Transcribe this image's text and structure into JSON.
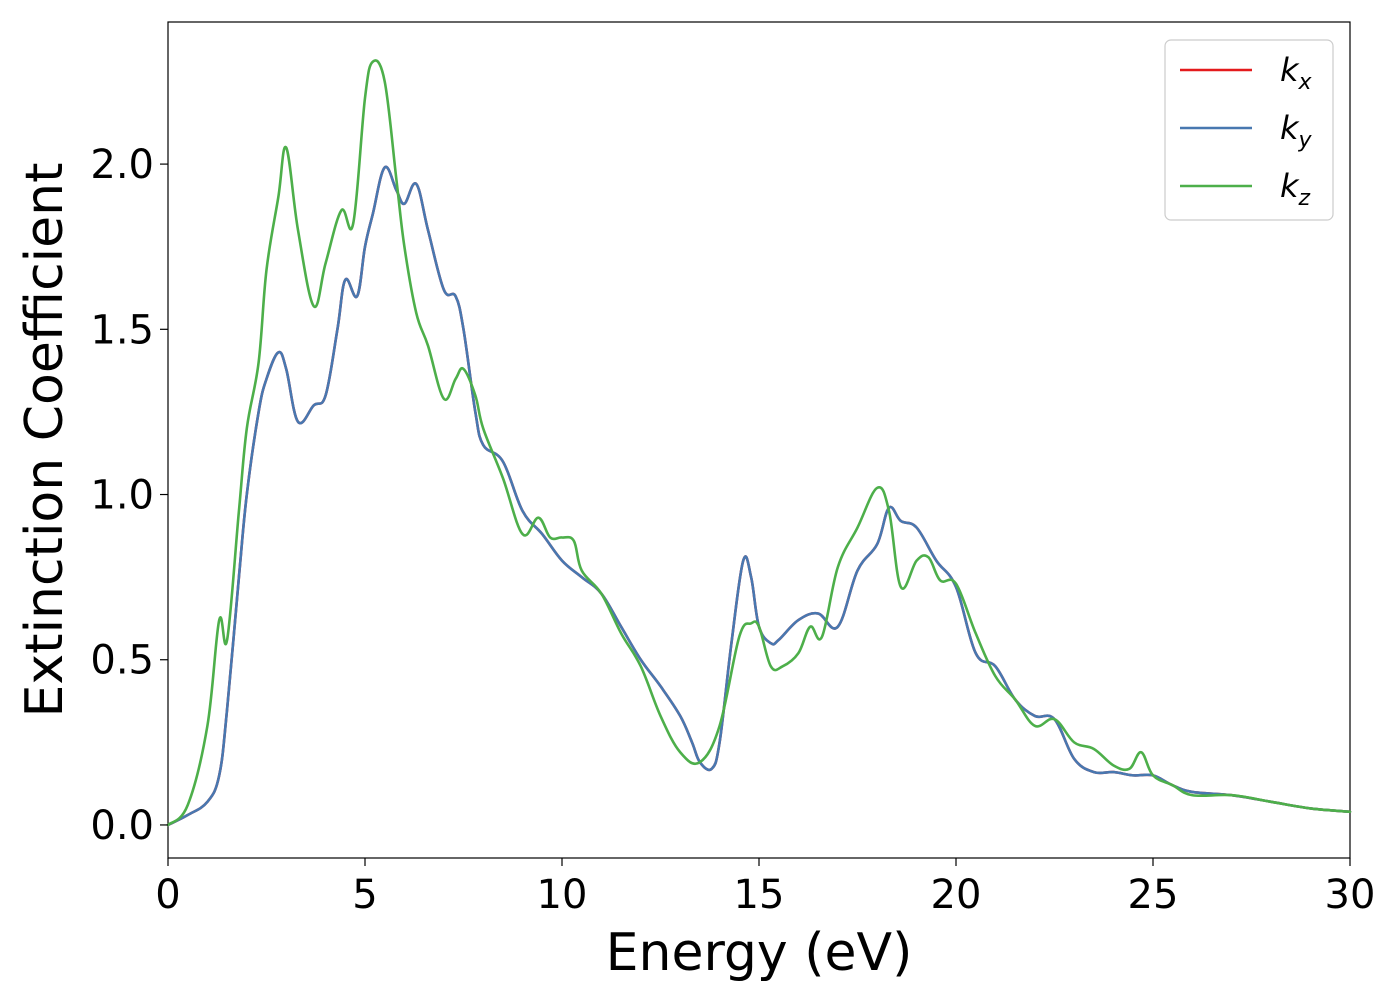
{
  "chart_data": {
    "type": "line",
    "xlabel": "Energy (eV)",
    "ylabel": "Extinction Coefficient",
    "xlim": [
      0,
      30
    ],
    "ylim": [
      -0.1,
      2.43
    ],
    "xticks": [
      0,
      5,
      10,
      15,
      20,
      25,
      30
    ],
    "xtick_labels": [
      "0",
      "5",
      "10",
      "15",
      "20",
      "25",
      "30"
    ],
    "yticks": [
      0.0,
      0.5,
      1.0,
      1.5,
      2.0
    ],
    "ytick_labels": [
      "0.0",
      "0.5",
      "1.0",
      "1.5",
      "2.0"
    ],
    "grid": false,
    "legend_position": "top-right",
    "series": [
      {
        "name": "k",
        "subscript": "x",
        "color": "#e41a1c",
        "x": [
          0,
          0.5,
          1.0,
          1.3,
          1.5,
          1.8,
          2.0,
          2.3,
          2.5,
          2.8,
          3.0,
          3.3,
          3.7,
          4.0,
          4.3,
          4.5,
          4.8,
          5.0,
          5.2,
          5.5,
          5.8,
          6.0,
          6.3,
          6.6,
          7.0,
          7.3,
          7.5,
          7.8,
          8.0,
          8.5,
          9.0,
          9.5,
          10.0,
          10.5,
          11.0,
          11.5,
          12.0,
          12.5,
          13.0,
          13.3,
          13.5,
          13.8,
          14.0,
          14.3,
          14.6,
          14.8,
          15.0,
          15.3,
          15.5,
          16.0,
          16.5,
          17.0,
          17.5,
          18.0,
          18.3,
          18.6,
          19.0,
          19.5,
          20.0,
          20.5,
          21.0,
          21.5,
          22.0,
          22.5,
          23.0,
          23.5,
          24.0,
          24.5,
          25.0,
          25.5,
          26.0,
          27.0,
          28.0,
          29.0,
          30.0
        ],
        "values": [
          0.0,
          0.03,
          0.07,
          0.15,
          0.35,
          0.75,
          1.0,
          1.25,
          1.35,
          1.43,
          1.38,
          1.22,
          1.27,
          1.3,
          1.5,
          1.65,
          1.6,
          1.75,
          1.85,
          1.99,
          1.92,
          1.88,
          1.94,
          1.8,
          1.62,
          1.6,
          1.5,
          1.25,
          1.15,
          1.1,
          0.95,
          0.88,
          0.8,
          0.75,
          0.7,
          0.6,
          0.5,
          0.42,
          0.33,
          0.25,
          0.19,
          0.17,
          0.25,
          0.55,
          0.8,
          0.75,
          0.6,
          0.55,
          0.56,
          0.62,
          0.64,
          0.6,
          0.77,
          0.85,
          0.96,
          0.92,
          0.9,
          0.8,
          0.72,
          0.52,
          0.48,
          0.38,
          0.33,
          0.32,
          0.2,
          0.16,
          0.16,
          0.15,
          0.15,
          0.12,
          0.1,
          0.09,
          0.07,
          0.05,
          0.04
        ]
      },
      {
        "name": "k",
        "subscript": "y",
        "color": "#4878b0",
        "x": [
          0,
          0.5,
          1.0,
          1.3,
          1.5,
          1.8,
          2.0,
          2.3,
          2.5,
          2.8,
          3.0,
          3.3,
          3.7,
          4.0,
          4.3,
          4.5,
          4.8,
          5.0,
          5.2,
          5.5,
          5.8,
          6.0,
          6.3,
          6.6,
          7.0,
          7.3,
          7.5,
          7.8,
          8.0,
          8.5,
          9.0,
          9.5,
          10.0,
          10.5,
          11.0,
          11.5,
          12.0,
          12.5,
          13.0,
          13.3,
          13.5,
          13.8,
          14.0,
          14.3,
          14.6,
          14.8,
          15.0,
          15.3,
          15.5,
          16.0,
          16.5,
          17.0,
          17.5,
          18.0,
          18.3,
          18.6,
          19.0,
          19.5,
          20.0,
          20.5,
          21.0,
          21.5,
          22.0,
          22.5,
          23.0,
          23.5,
          24.0,
          24.5,
          25.0,
          25.5,
          26.0,
          27.0,
          28.0,
          29.0,
          30.0
        ],
        "values": [
          0.0,
          0.03,
          0.07,
          0.15,
          0.35,
          0.75,
          1.0,
          1.25,
          1.35,
          1.43,
          1.38,
          1.22,
          1.27,
          1.3,
          1.5,
          1.65,
          1.6,
          1.75,
          1.85,
          1.99,
          1.92,
          1.88,
          1.94,
          1.8,
          1.62,
          1.6,
          1.5,
          1.25,
          1.15,
          1.1,
          0.95,
          0.88,
          0.8,
          0.75,
          0.7,
          0.6,
          0.5,
          0.42,
          0.33,
          0.25,
          0.19,
          0.17,
          0.25,
          0.55,
          0.8,
          0.75,
          0.6,
          0.55,
          0.56,
          0.62,
          0.64,
          0.6,
          0.77,
          0.85,
          0.96,
          0.92,
          0.9,
          0.8,
          0.72,
          0.52,
          0.48,
          0.38,
          0.33,
          0.32,
          0.2,
          0.16,
          0.16,
          0.15,
          0.15,
          0.12,
          0.1,
          0.09,
          0.07,
          0.05,
          0.04
        ]
      },
      {
        "name": "k",
        "subscript": "z",
        "color": "#4daf4a",
        "x": [
          0,
          0.5,
          1.0,
          1.3,
          1.5,
          1.8,
          2.0,
          2.3,
          2.5,
          2.8,
          3.0,
          3.3,
          3.7,
          4.0,
          4.4,
          4.7,
          5.0,
          5.2,
          5.5,
          5.8,
          6.0,
          6.3,
          6.6,
          7.0,
          7.3,
          7.5,
          7.8,
          8.0,
          8.5,
          9.0,
          9.4,
          9.7,
          10.0,
          10.3,
          10.5,
          11.0,
          11.5,
          12.0,
          12.5,
          13.0,
          13.5,
          14.0,
          14.5,
          14.8,
          15.0,
          15.3,
          15.6,
          16.0,
          16.3,
          16.6,
          17.0,
          17.5,
          18.0,
          18.3,
          18.6,
          19.0,
          19.3,
          19.6,
          20.0,
          20.5,
          21.0,
          21.5,
          22.0,
          22.5,
          23.0,
          23.5,
          24.0,
          24.4,
          24.7,
          25.0,
          25.5,
          26.0,
          27.0,
          28.0,
          29.0,
          30.0
        ],
        "values": [
          0.0,
          0.06,
          0.3,
          0.62,
          0.56,
          0.95,
          1.2,
          1.4,
          1.68,
          1.9,
          2.05,
          1.8,
          1.57,
          1.7,
          1.86,
          1.82,
          2.2,
          2.31,
          2.25,
          1.95,
          1.75,
          1.55,
          1.45,
          1.29,
          1.35,
          1.38,
          1.3,
          1.2,
          1.05,
          0.88,
          0.93,
          0.87,
          0.87,
          0.86,
          0.77,
          0.7,
          0.58,
          0.48,
          0.33,
          0.22,
          0.19,
          0.3,
          0.57,
          0.61,
          0.6,
          0.48,
          0.48,
          0.52,
          0.6,
          0.57,
          0.78,
          0.9,
          1.02,
          0.95,
          0.72,
          0.8,
          0.81,
          0.74,
          0.73,
          0.58,
          0.45,
          0.38,
          0.3,
          0.32,
          0.25,
          0.23,
          0.18,
          0.17,
          0.22,
          0.15,
          0.12,
          0.09,
          0.09,
          0.07,
          0.05,
          0.04
        ]
      }
    ]
  }
}
